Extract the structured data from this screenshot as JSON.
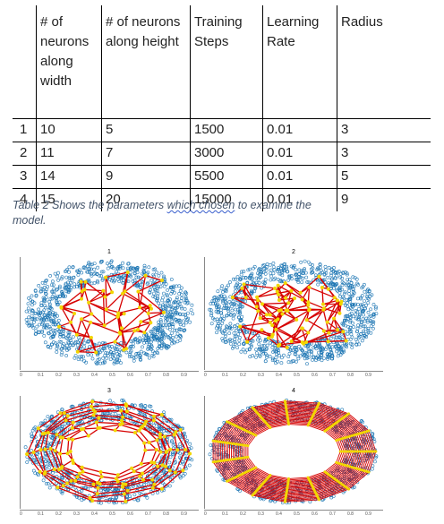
{
  "table": {
    "headers": [
      "# of neurons along width",
      "# of neurons along height",
      "Training Steps",
      "Learning Rate",
      "Radius"
    ],
    "rows": [
      {
        "idx": "1",
        "width": "10",
        "height": "5",
        "steps": "1500",
        "lr": "0.01",
        "radius": "3"
      },
      {
        "idx": "2",
        "width": "11",
        "height": "7",
        "steps": "3000",
        "lr": "0.01",
        "radius": "3"
      },
      {
        "idx": "3",
        "width": "14",
        "height": "9",
        "steps": "5500",
        "lr": "0.01",
        "radius": "5"
      },
      {
        "idx": "4",
        "width": "15",
        "height": "20",
        "steps": "15000",
        "lr": "0.01",
        "radius": "9"
      }
    ]
  },
  "caption": {
    "before": "Table 2 Shows the parameters ",
    "underlined": "which chosen",
    "after": " to examine the model."
  },
  "figure": {
    "panels": [
      {
        "label": "1",
        "grid": [
          5,
          10
        ]
      },
      {
        "label": "2",
        "grid": [
          7,
          11
        ]
      },
      {
        "label": "3",
        "grid": [
          9,
          14
        ]
      },
      {
        "label": "4",
        "grid": [
          20,
          15
        ]
      }
    ],
    "xticks": [
      "0",
      "0.1",
      "0.2",
      "0.3",
      "0.4",
      "0.5",
      "0.6",
      "0.7",
      "0.8",
      "0.9"
    ],
    "colors": {
      "data": "#1f77b4",
      "edges": "#d60000",
      "nodes": "#f2d600"
    }
  }
}
